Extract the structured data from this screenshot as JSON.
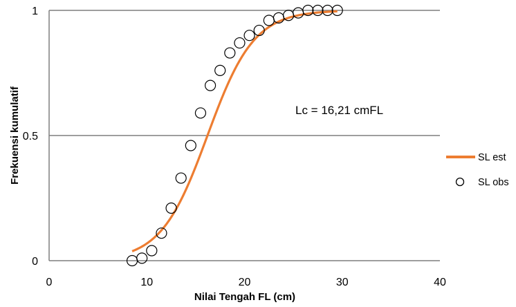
{
  "chart_data": {
    "type": "scatter",
    "xlabel": "Nilai Tengah FL (cm)",
    "ylabel": "Frekuensi kumulatif",
    "xlim": [
      0,
      40
    ],
    "ylim": [
      0,
      1
    ],
    "x_ticks": [
      0,
      10,
      20,
      30,
      40
    ],
    "y_ticks": [
      0,
      0.5,
      1
    ],
    "x_tick_labels": [
      "0",
      "10",
      "20",
      "30",
      "40"
    ],
    "y_tick_labels": [
      "0",
      "0.5",
      "1"
    ],
    "grid": "horizontal",
    "legend_position": "right",
    "annotation": "Lc = 16,21 cmFL",
    "colors": {
      "estimated": "#ED7D31",
      "observed": "#000000",
      "grid": "#7f7f7f"
    },
    "series": [
      {
        "name": "SL est",
        "type": "line",
        "lc": 16.21,
        "x": [
          8.5,
          9.5,
          10.5,
          11.5,
          12.5,
          13.5,
          14.5,
          15.5,
          16.5,
          17.5,
          18.5,
          19.5,
          20.5,
          21.5,
          22.5,
          23.5,
          24.5,
          25.5,
          26.5,
          27.5,
          28.5,
          29.5
        ],
        "y": [
          0.01,
          0.02,
          0.04,
          0.08,
          0.14,
          0.23,
          0.32,
          0.42,
          0.53,
          0.64,
          0.74,
          0.83,
          0.89,
          0.93,
          0.96,
          0.98,
          0.99,
          0.995,
          0.998,
          0.999,
          1.0,
          1.0
        ]
      },
      {
        "name": "SL obs",
        "type": "scatter",
        "marker": "open-circle",
        "x": [
          8.5,
          9.5,
          10.5,
          11.5,
          12.5,
          13.5,
          14.5,
          15.5,
          16.5,
          17.5,
          18.5,
          19.5,
          20.5,
          21.5,
          22.5,
          23.5,
          24.5,
          25.5,
          26.5,
          27.5,
          28.5,
          29.5
        ],
        "y": [
          0.0,
          0.01,
          0.04,
          0.11,
          0.21,
          0.33,
          0.46,
          0.59,
          0.7,
          0.76,
          0.83,
          0.87,
          0.9,
          0.92,
          0.96,
          0.97,
          0.98,
          0.99,
          1.0,
          1.0,
          1.0,
          1.0
        ]
      }
    ]
  }
}
